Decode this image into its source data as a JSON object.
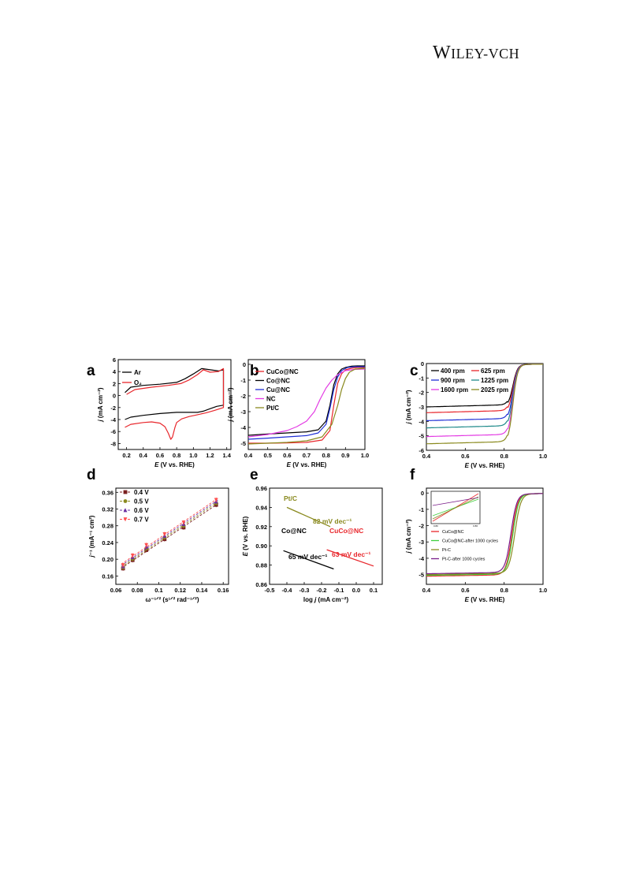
{
  "header": {
    "logo_text": "WILEY-VCH"
  },
  "chart_data": [
    {
      "panel": "a",
      "type": "line",
      "xlabel_italic": "E",
      "xlabel": " (V vs. RHE)",
      "ylabel_italic": "j",
      "ylabel": " (mA cm⁻²)",
      "xlim": [
        0.1,
        1.45
      ],
      "ylim": [
        -9,
        6
      ],
      "xticks": [
        0.2,
        0.4,
        0.6,
        0.8,
        1.0,
        1.2,
        1.4
      ],
      "yticks": [
        -8,
        -6,
        -4,
        -2,
        0,
        2,
        4,
        6
      ],
      "legend_position": "top-left",
      "series": [
        {
          "name": "Ar",
          "color": "#000000",
          "x": [
            0.18,
            0.25,
            0.4,
            0.6,
            0.8,
            0.95,
            1.05,
            1.12,
            1.2,
            1.28,
            1.36,
            1.36,
            1.3,
            1.2,
            1.1,
            1.0,
            0.9,
            0.8,
            0.6,
            0.4,
            0.25,
            0.18
          ],
          "y": [
            -4.0,
            -3.6,
            -3.3,
            -3.0,
            -2.8,
            -2.8,
            -2.8,
            -2.6,
            -2.2,
            -1.8,
            -1.6,
            4.3,
            4.1,
            4.3,
            4.5,
            3.6,
            2.8,
            2.2,
            1.9,
            1.7,
            1.4,
            0.5
          ]
        },
        {
          "name": "O₂",
          "color": "#e8262b",
          "x": [
            0.18,
            0.25,
            0.4,
            0.5,
            0.6,
            0.66,
            0.7,
            0.73,
            0.75,
            0.78,
            0.8,
            0.86,
            0.95,
            1.05,
            1.15,
            1.25,
            1.36,
            1.36,
            1.3,
            1.2,
            1.12,
            1.05,
            0.95,
            0.85,
            0.7,
            0.5,
            0.3,
            0.2
          ],
          "y": [
            -5.3,
            -4.8,
            -4.5,
            -4.4,
            -4.6,
            -5.2,
            -6.3,
            -7.3,
            -6.9,
            -5.3,
            -4.5,
            -3.9,
            -3.5,
            -3.2,
            -2.9,
            -2.5,
            -2.0,
            4.5,
            4.0,
            3.9,
            4.3,
            3.5,
            2.6,
            2.0,
            1.7,
            1.4,
            1.0,
            0.2
          ]
        }
      ]
    },
    {
      "panel": "b",
      "type": "line",
      "xlabel_italic": "E",
      "xlabel": " (V vs. RHE)",
      "ylabel_italic": "j",
      "ylabel": " (mA cm⁻²)",
      "xlim": [
        0.4,
        1.0
      ],
      "ylim": [
        -5.4,
        0.3
      ],
      "xticks": [
        0.4,
        0.5,
        0.6,
        0.7,
        0.8,
        0.9,
        1.0
      ],
      "yticks": [
        0,
        -1,
        -2,
        -3,
        -4,
        -5
      ],
      "legend_position": "top-left",
      "series": [
        {
          "name": "CuCo@NC",
          "color": "#e8262b",
          "x": [
            0.4,
            0.5,
            0.6,
            0.7,
            0.78,
            0.82,
            0.84,
            0.86,
            0.88,
            0.9,
            0.93,
            0.96,
            1.0
          ],
          "y": [
            -5.0,
            -5.0,
            -4.98,
            -4.95,
            -4.8,
            -4.2,
            -2.6,
            -1.2,
            -0.6,
            -0.35,
            -0.25,
            -0.2,
            -0.2
          ]
        },
        {
          "name": "Co@NC",
          "color": "#000000",
          "x": [
            0.4,
            0.5,
            0.6,
            0.7,
            0.76,
            0.8,
            0.82,
            0.84,
            0.86,
            0.88,
            0.9,
            0.93,
            0.96,
            1.0
          ],
          "y": [
            -4.5,
            -4.42,
            -4.35,
            -4.28,
            -4.15,
            -3.6,
            -2.6,
            -1.3,
            -0.6,
            -0.3,
            -0.2,
            -0.12,
            -0.1,
            -0.1
          ]
        },
        {
          "name": "Cu@NC",
          "color": "#1f2fd6",
          "x": [
            0.4,
            0.5,
            0.6,
            0.7,
            0.76,
            0.8,
            0.82,
            0.84,
            0.86,
            0.88,
            0.91,
            0.95,
            1.0
          ],
          "y": [
            -4.75,
            -4.68,
            -4.6,
            -4.52,
            -4.35,
            -3.8,
            -2.8,
            -1.6,
            -0.8,
            -0.4,
            -0.2,
            -0.15,
            -0.15
          ]
        },
        {
          "name": "NC",
          "color": "#e33be3",
          "x": [
            0.4,
            0.5,
            0.6,
            0.65,
            0.7,
            0.74,
            0.77,
            0.8,
            0.83,
            0.86,
            0.9,
            0.95,
            1.0
          ],
          "y": [
            -4.6,
            -4.45,
            -4.2,
            -3.95,
            -3.6,
            -3.0,
            -2.2,
            -1.5,
            -1.0,
            -0.65,
            -0.4,
            -0.32,
            -0.3
          ]
        },
        {
          "name": "Pt/C",
          "color": "#8a8a1f",
          "x": [
            0.4,
            0.5,
            0.6,
            0.7,
            0.78,
            0.83,
            0.86,
            0.88,
            0.9,
            0.92,
            0.95,
            1.0
          ],
          "y": [
            -5.05,
            -5.0,
            -4.95,
            -4.85,
            -4.6,
            -3.8,
            -2.6,
            -1.6,
            -0.9,
            -0.5,
            -0.3,
            -0.25
          ]
        }
      ]
    },
    {
      "panel": "c",
      "type": "line",
      "xlabel_italic": "E",
      "xlabel": " (V vs. RHE)",
      "ylabel_italic": "j",
      "ylabel": " (mA cm⁻²)",
      "xlim": [
        0.4,
        1.0
      ],
      "ylim": [
        -6,
        0
      ],
      "xticks": [
        0.4,
        0.6,
        0.8,
        1.0
      ],
      "yticks": [
        0,
        -1,
        -2,
        -3,
        -4,
        -5,
        -6
      ],
      "legend_position": "top-left",
      "series": [
        {
          "name": "400 rpm",
          "color": "#000000",
          "plateau": -3.0
        },
        {
          "name": "625 rpm",
          "color": "#e8262b",
          "plateau": -3.4
        },
        {
          "name": "900 rpm",
          "color": "#1f2fd6",
          "plateau": -3.95
        },
        {
          "name": "1225 rpm",
          "color": "#1f8a8a",
          "plateau": -4.45
        },
        {
          "name": "1600 rpm",
          "color": "#e33be3",
          "plateau": -5.05
        },
        {
          "name": "2025 rpm",
          "color": "#8a8a1f",
          "plateau": -5.55
        }
      ]
    },
    {
      "panel": "d",
      "type": "scatter",
      "xlabel": "ω⁻¹ᐟ² (s¹ᐟ² rad⁻¹ᐟ²)",
      "ylabel_italic": "j",
      "ylabel": "⁻¹ (mA⁻¹ cm²)",
      "xlim": [
        0.06,
        0.165
      ],
      "ylim": [
        0.14,
        0.37
      ],
      "xticks": [
        0.06,
        0.08,
        0.1,
        0.12,
        0.14,
        0.16
      ],
      "yticks": [
        0.16,
        0.2,
        0.24,
        0.28,
        0.32,
        0.36
      ],
      "legend_position": "top-left",
      "x": [
        0.0667,
        0.0756,
        0.0884,
        0.1054,
        0.1231,
        0.1534
      ],
      "series": [
        {
          "name": "0.4 V",
          "color": "#7a1f1f",
          "marker": "square",
          "y": [
            0.178,
            0.198,
            0.222,
            0.248,
            0.276,
            0.33
          ]
        },
        {
          "name": "0.5 V",
          "color": "#8a8a1f",
          "marker": "circle",
          "y": [
            0.18,
            0.201,
            0.226,
            0.252,
            0.28,
            0.334
          ]
        },
        {
          "name": "0.6 V",
          "color": "#6a2fa0",
          "marker": "triangle",
          "y": [
            0.183,
            0.205,
            0.23,
            0.256,
            0.284,
            0.338
          ]
        },
        {
          "name": "0.7 V",
          "color": "#ff4f4f",
          "marker": "triangle-down",
          "y": [
            0.186,
            0.209,
            0.234,
            0.26,
            0.288,
            0.342
          ]
        }
      ]
    },
    {
      "panel": "e",
      "type": "line",
      "xlabel": "log ",
      "xlabel_italic": "j",
      "xlabel_tail": " (mA cm⁻²)",
      "ylabel_italic": "E",
      "ylabel": " (V vs. RHE)",
      "xlim": [
        -0.5,
        0.15
      ],
      "ylim": [
        0.86,
        0.96
      ],
      "xticks": [
        -0.5,
        -0.4,
        -0.3,
        -0.2,
        -0.1,
        0.0,
        0.1
      ],
      "yticks": [
        0.86,
        0.88,
        0.9,
        0.92,
        0.94,
        0.96
      ],
      "series": [
        {
          "name": "Pt/C",
          "color": "#8a8a1f",
          "x": [
            -0.4,
            -0.15
          ],
          "y": [
            0.94,
            0.92
          ],
          "slope_label": "82 mV dec⁻¹"
        },
        {
          "name": "Co@NC",
          "color": "#000000",
          "x": [
            -0.42,
            -0.13
          ],
          "y": [
            0.895,
            0.876
          ],
          "slope_label": "65 mV dec⁻¹"
        },
        {
          "name": "CuCo@NC",
          "color": "#e8262b",
          "x": [
            -0.17,
            0.1
          ],
          "y": [
            0.896,
            0.879
          ],
          "slope_label": "63 mV dec⁻¹"
        }
      ]
    },
    {
      "panel": "f",
      "type": "line",
      "xlabel_italic": "E",
      "xlabel": " (V vs. RHE)",
      "ylabel_italic": "j",
      "ylabel": " (mA cm⁻²)",
      "xlim": [
        0.4,
        1.0
      ],
      "ylim": [
        -5.6,
        0.3
      ],
      "xticks": [
        0.4,
        0.6,
        0.8,
        1.0
      ],
      "yticks": [
        0,
        -1,
        -2,
        -3,
        -4,
        -5
      ],
      "legend_position": "center-left",
      "series": [
        {
          "name": "CuCo@NC",
          "color": "#e8262b",
          "plateau": -5.1,
          "half": 0.84
        },
        {
          "name": "CuCo@NC-after 1000 cycles",
          "color": "#3fcf3f",
          "plateau": -5.05,
          "half": 0.845
        },
        {
          "name": "Pt-C",
          "color": "#8a8a1f",
          "plateau": -5.0,
          "half": 0.855
        },
        {
          "name": "Pt-C-after 1000 cycles",
          "color": "#7a1f8a",
          "plateau": -4.95,
          "half": 0.835
        }
      ],
      "inset": {
        "xtick_left": "0.80",
        "xtick_right": "0.86"
      }
    }
  ],
  "panel_labels": [
    "a",
    "b",
    "c",
    "d",
    "e",
    "f"
  ]
}
